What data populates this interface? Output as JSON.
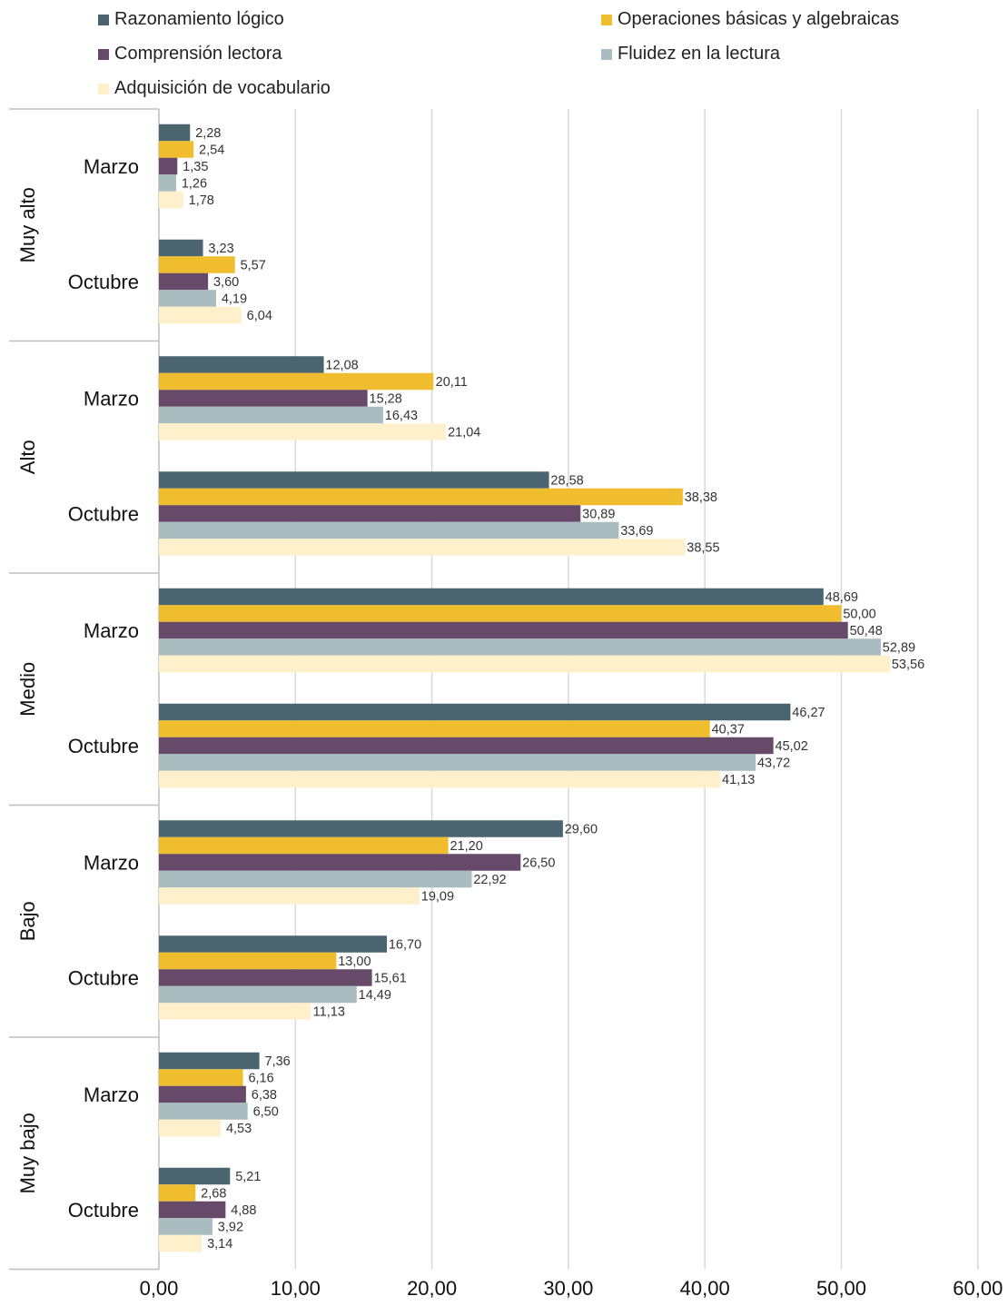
{
  "chart_data": {
    "type": "bar",
    "orientation": "horizontal",
    "legend_position": "top",
    "grid": true,
    "xlim": [
      0,
      60
    ],
    "x_ticks": [
      "0,00",
      "10,00",
      "20,00",
      "30,00",
      "40,00",
      "50,00",
      "60,00"
    ],
    "x_tick_values": [
      0,
      10,
      20,
      30,
      40,
      50,
      60
    ],
    "groups": [
      {
        "name": "Muy alto",
        "subgroups": [
          {
            "name": "Marzo",
            "values": [
              2.28,
              2.54,
              1.35,
              1.26,
              1.78
            ],
            "labels": [
              "2,28",
              "2,54",
              "1,35",
              "1,26",
              "1,78"
            ]
          },
          {
            "name": "Octubre",
            "values": [
              3.23,
              5.57,
              3.6,
              4.19,
              6.04
            ],
            "labels": [
              "3,23",
              "5,57",
              "3,60",
              "4,19",
              "6,04"
            ]
          }
        ]
      },
      {
        "name": "Alto",
        "subgroups": [
          {
            "name": "Marzo",
            "values": [
              12.08,
              20.11,
              15.28,
              16.43,
              21.04
            ],
            "labels": [
              "12,08",
              "20,11",
              "15,28",
              "16,43",
              "21,04"
            ]
          },
          {
            "name": "Octubre",
            "values": [
              28.58,
              38.38,
              30.89,
              33.69,
              38.55
            ],
            "labels": [
              "28,58",
              "38,38",
              "30,89",
              "33,69",
              "38,55"
            ]
          }
        ]
      },
      {
        "name": "Medio",
        "subgroups": [
          {
            "name": "Marzo",
            "values": [
              48.69,
              50.0,
              50.48,
              52.89,
              53.56
            ],
            "labels": [
              "48,69",
              "50,00",
              "50,48",
              "52,89",
              "53,56"
            ]
          },
          {
            "name": "Octubre",
            "values": [
              46.27,
              40.37,
              45.02,
              43.72,
              41.13
            ],
            "labels": [
              "46,27",
              "40,37",
              "45,02",
              "43,72",
              "41,13"
            ]
          }
        ]
      },
      {
        "name": "Bajo",
        "subgroups": [
          {
            "name": "Marzo",
            "values": [
              29.6,
              21.2,
              26.5,
              22.92,
              19.09
            ],
            "labels": [
              "29,60",
              "21,20",
              "26,50",
              "22,92",
              "19,09"
            ]
          },
          {
            "name": "Octubre",
            "values": [
              16.7,
              13.0,
              15.61,
              14.49,
              11.13
            ],
            "labels": [
              "16,70",
              "13,00",
              "15,61",
              "14,49",
              "11,13"
            ]
          }
        ]
      },
      {
        "name": "Muy bajo",
        "subgroups": [
          {
            "name": "Marzo",
            "values": [
              7.36,
              6.16,
              6.38,
              6.5,
              4.53
            ],
            "labels": [
              "7,36",
              "6,16",
              "6,38",
              "6,50",
              "4,53"
            ]
          },
          {
            "name": "Octubre",
            "values": [
              5.21,
              2.68,
              4.88,
              3.92,
              3.14
            ],
            "labels": [
              "5,21",
              "2,68",
              "4,88",
              "3,92",
              "3,14"
            ]
          }
        ]
      }
    ],
    "series": [
      {
        "name": "Razonamiento lógico",
        "color": "#4a6470"
      },
      {
        "name": "Operaciones básicas y algebraicas",
        "color": "#f0bd2f"
      },
      {
        "name": "Comprensión lectora",
        "color": "#674a69"
      },
      {
        "name": "Fluidez en la lectura",
        "color": "#a9bcc0"
      },
      {
        "name": "Adquisición de vocabulario",
        "color": "#fef0cb"
      }
    ]
  }
}
